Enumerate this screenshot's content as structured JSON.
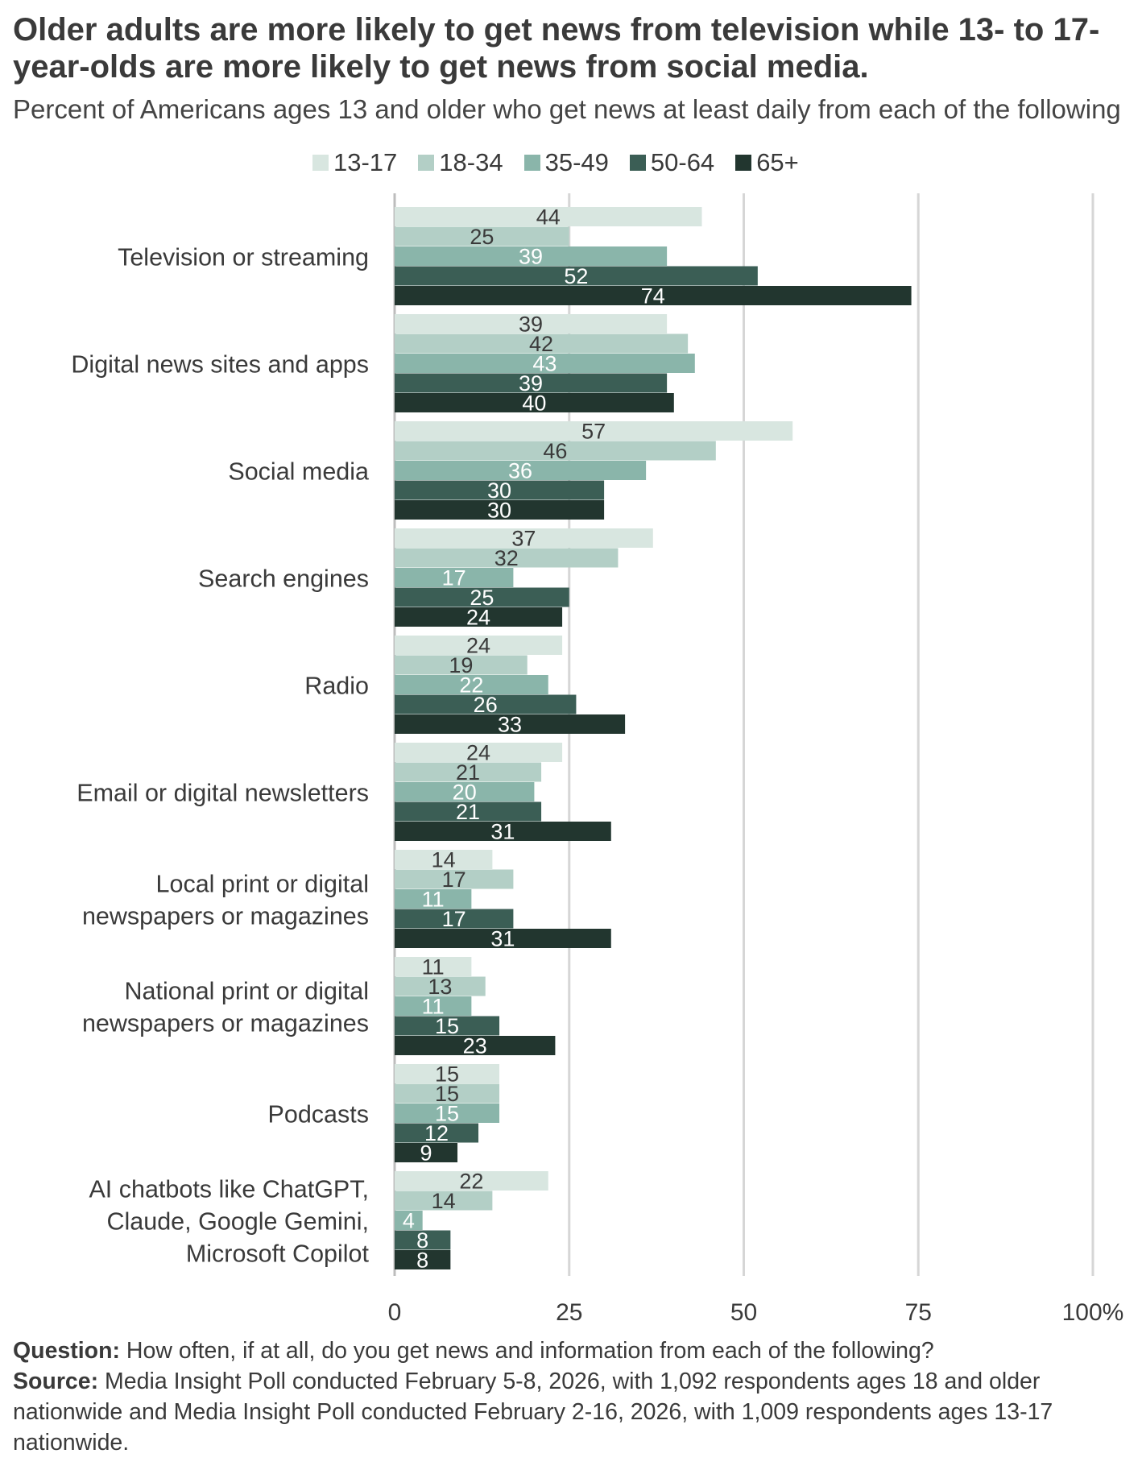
{
  "title": "Older adults are more likely to get news from television while 13- to 17-year-olds are more likely to get news from social media.",
  "subtitle": "Percent of Americans ages 13 and older who get news at least daily from each of the following",
  "footer": {
    "question_label": "Question:",
    "question_text": "How often, if at all, do you get news and information from each of the following?",
    "source_label": "Source:",
    "source_text": "Media Insight Poll conducted February 5-8, 2026, with 1,092 respondents ages 18 and older nationwide and Media Insight Poll conducted February 2-16, 2026, with 1,009 respondents ages 13-17 nationwide."
  },
  "chart_data": {
    "type": "bar",
    "orientation": "horizontal",
    "title": "Older adults are more likely to get news from television while 13- to 17-year-olds are more likely to get news from social media.",
    "subtitle": "Percent of Americans ages 13 and older who get news at least daily from each of the following",
    "categories": [
      [
        "Television or streaming"
      ],
      [
        "Digital news sites and apps"
      ],
      [
        "Social media"
      ],
      [
        "Search engines"
      ],
      [
        "Radio"
      ],
      [
        "Email or digital newsletters"
      ],
      [
        "Local print or digital",
        "newspapers or magazines"
      ],
      [
        "National print or digital",
        "newspapers or magazines"
      ],
      [
        "Podcasts"
      ],
      [
        "AI chatbots like ChatGPT,",
        "Claude, Google Gemini,",
        "Microsoft Copilot"
      ]
    ],
    "series": [
      {
        "name": "13-17",
        "color": "#d8e6e0",
        "label_color": "#3a3a3a",
        "values": [
          44,
          39,
          57,
          37,
          24,
          24,
          14,
          11,
          15,
          22
        ]
      },
      {
        "name": "18-34",
        "color": "#b3cfc6",
        "label_color": "#3a3a3a",
        "values": [
          25,
          42,
          46,
          32,
          19,
          21,
          17,
          13,
          15,
          14
        ]
      },
      {
        "name": "35-49",
        "color": "#8ab5aa",
        "label_color": "#ffffff",
        "values": [
          39,
          43,
          36,
          17,
          22,
          20,
          11,
          11,
          15,
          4
        ]
      },
      {
        "name": "50-64",
        "color": "#3b5e55",
        "label_color": "#ffffff",
        "values": [
          52,
          39,
          30,
          25,
          26,
          21,
          17,
          15,
          12,
          8
        ]
      },
      {
        "name": "65+",
        "color": "#22362f",
        "label_color": "#ffffff",
        "values": [
          74,
          40,
          30,
          24,
          33,
          31,
          31,
          23,
          9,
          8
        ]
      }
    ],
    "xlim": [
      0,
      100
    ],
    "xticks": [
      "0",
      "25",
      "50",
      "75",
      "100%"
    ],
    "xtick_values": [
      0,
      25,
      50,
      75,
      100
    ],
    "grid": true,
    "legend_position": "top"
  }
}
